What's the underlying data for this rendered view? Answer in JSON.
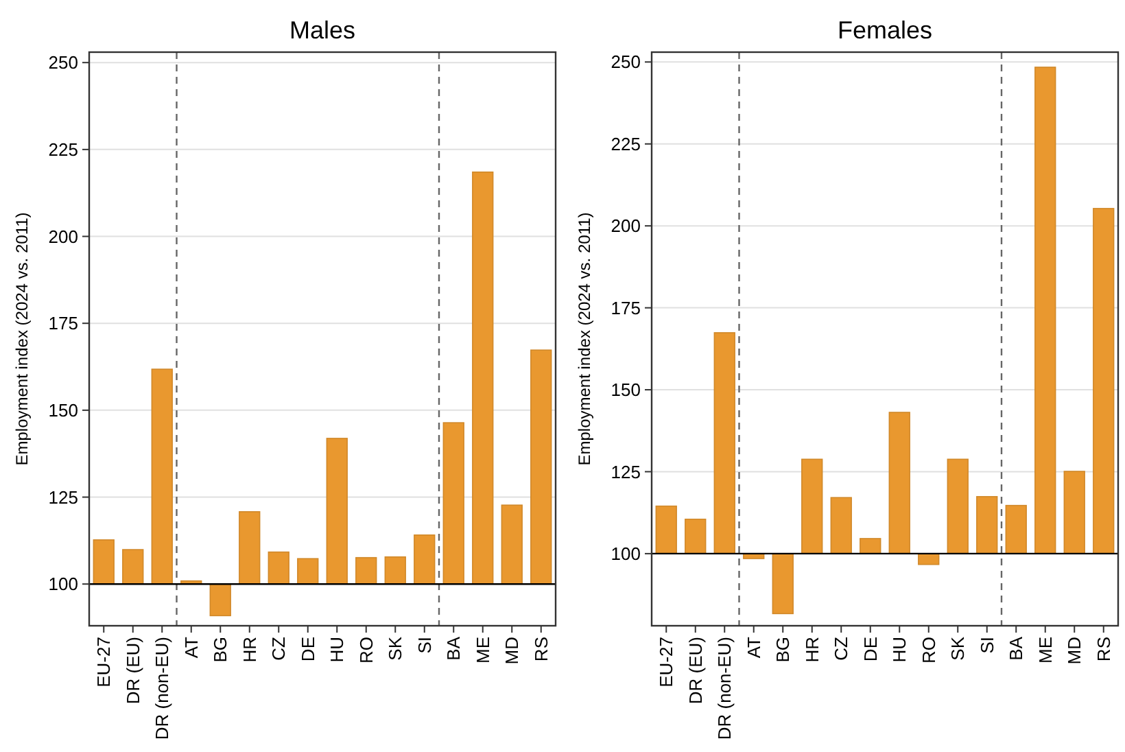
{
  "chart_data": [
    {
      "type": "bar",
      "title": "Males",
      "ylabel": "Employment index (2024 vs. 2011)",
      "categories": [
        "EU-27",
        "DR (EU)",
        "DR (non-EU)",
        "AT",
        "BG",
        "HR",
        "CZ",
        "DE",
        "HU",
        "RO",
        "SK",
        "SI",
        "BA",
        "ME",
        "MD",
        "RS"
      ],
      "base": [
        100,
        100,
        100,
        100,
        100,
        100,
        100,
        100,
        100,
        100,
        100,
        100,
        100,
        100,
        100,
        100
      ],
      "values": [
        12.7,
        9.9,
        61.8,
        0.9,
        -9.1,
        20.8,
        9.2,
        7.3,
        41.9,
        7.6,
        7.8,
        14.1,
        46.4,
        118.5,
        22.7,
        67.3
      ],
      "color": "#e9982f",
      "ylim": [
        88,
        253
      ],
      "yticks": [
        100,
        125,
        150,
        175,
        200,
        225,
        250
      ],
      "grid": "y",
      "ref_lines": [
        {
          "axis": "y",
          "value": 100,
          "color": "#000000",
          "line_style": "solid"
        }
      ]
    },
    {
      "type": "bar",
      "title": "Females",
      "ylabel": "Employment index (2024 vs. 2011)",
      "categories": [
        "EU-27",
        "DR (EU)",
        "DR (non-EU)",
        "AT",
        "BG",
        "HR",
        "CZ",
        "DE",
        "HU",
        "RO",
        "SK",
        "SI",
        "BA",
        "ME",
        "MD",
        "RS"
      ],
      "base": [
        100,
        100,
        100,
        100,
        100,
        100,
        100,
        100,
        100,
        100,
        100,
        100,
        100,
        100,
        100,
        100
      ],
      "values": [
        14.5,
        10.5,
        67.4,
        -1.5,
        -18.3,
        28.8,
        17.1,
        4.6,
        43.1,
        -3.3,
        28.8,
        17.4,
        14.7,
        148.4,
        25.1,
        105.3
      ],
      "color": "#e9982f",
      "ylim": [
        78,
        253
      ],
      "yticks": [
        100,
        125,
        150,
        175,
        200,
        225,
        250
      ],
      "grid": "y",
      "ref_lines": [
        {
          "axis": "y",
          "value": 100,
          "color": "#000000",
          "line_style": "solid"
        }
      ]
    }
  ]
}
